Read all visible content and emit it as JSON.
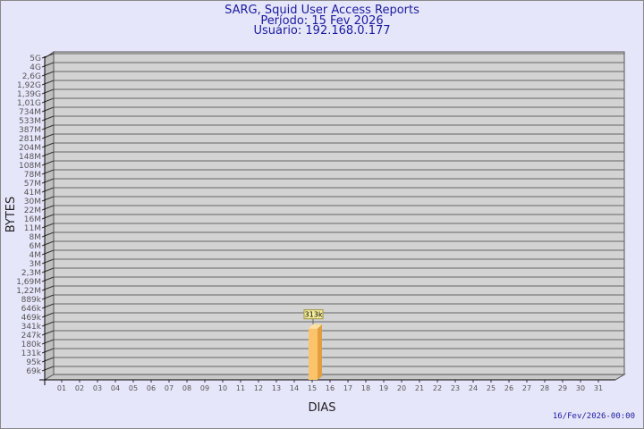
{
  "chart_data": {
    "type": "bar",
    "title": "SARG, Squid User Access Reports",
    "subtitle1": "Período: 15 Fev 2026",
    "subtitle2": "Usuário: 192.168.0.177",
    "xlabel": "DIAS",
    "ylabel": "BYTES",
    "yticks": [
      "5G",
      "4G",
      "2,6G",
      "1,92G",
      "1,39G",
      "1,01G",
      "734M",
      "533M",
      "387M",
      "281M",
      "204M",
      "148M",
      "108M",
      "78M",
      "57M",
      "41M",
      "30M",
      "22M",
      "16M",
      "11M",
      "8M",
      "6M",
      "4M",
      "3M",
      "2,3M",
      "1,69M",
      "1,22M",
      "889k",
      "646k",
      "469k",
      "341k",
      "247k",
      "180k",
      "131k",
      "95k",
      "69k"
    ],
    "categories": [
      "01",
      "02",
      "03",
      "04",
      "05",
      "06",
      "07",
      "08",
      "09",
      "10",
      "11",
      "12",
      "13",
      "14",
      "15",
      "16",
      "17",
      "18",
      "19",
      "20",
      "21",
      "22",
      "23",
      "24",
      "25",
      "26",
      "27",
      "28",
      "29",
      "30",
      "31"
    ],
    "values": [
      0,
      0,
      0,
      0,
      0,
      0,
      0,
      0,
      0,
      0,
      0,
      0,
      0,
      0,
      313000,
      0,
      0,
      0,
      0,
      0,
      0,
      0,
      0,
      0,
      0,
      0,
      0,
      0,
      0,
      0,
      0
    ],
    "data_labels": {
      "15": "313k"
    },
    "yscale": "log",
    "grid": true,
    "colors": {
      "bar": "#fcc46a",
      "bar_side": "#e0a040",
      "plot_bg": "#d3d3d3",
      "text": "#1a1aa0",
      "label_bg": "#f5ee9c"
    }
  },
  "footer": {
    "date": "16/Fev/2026-00:00"
  }
}
